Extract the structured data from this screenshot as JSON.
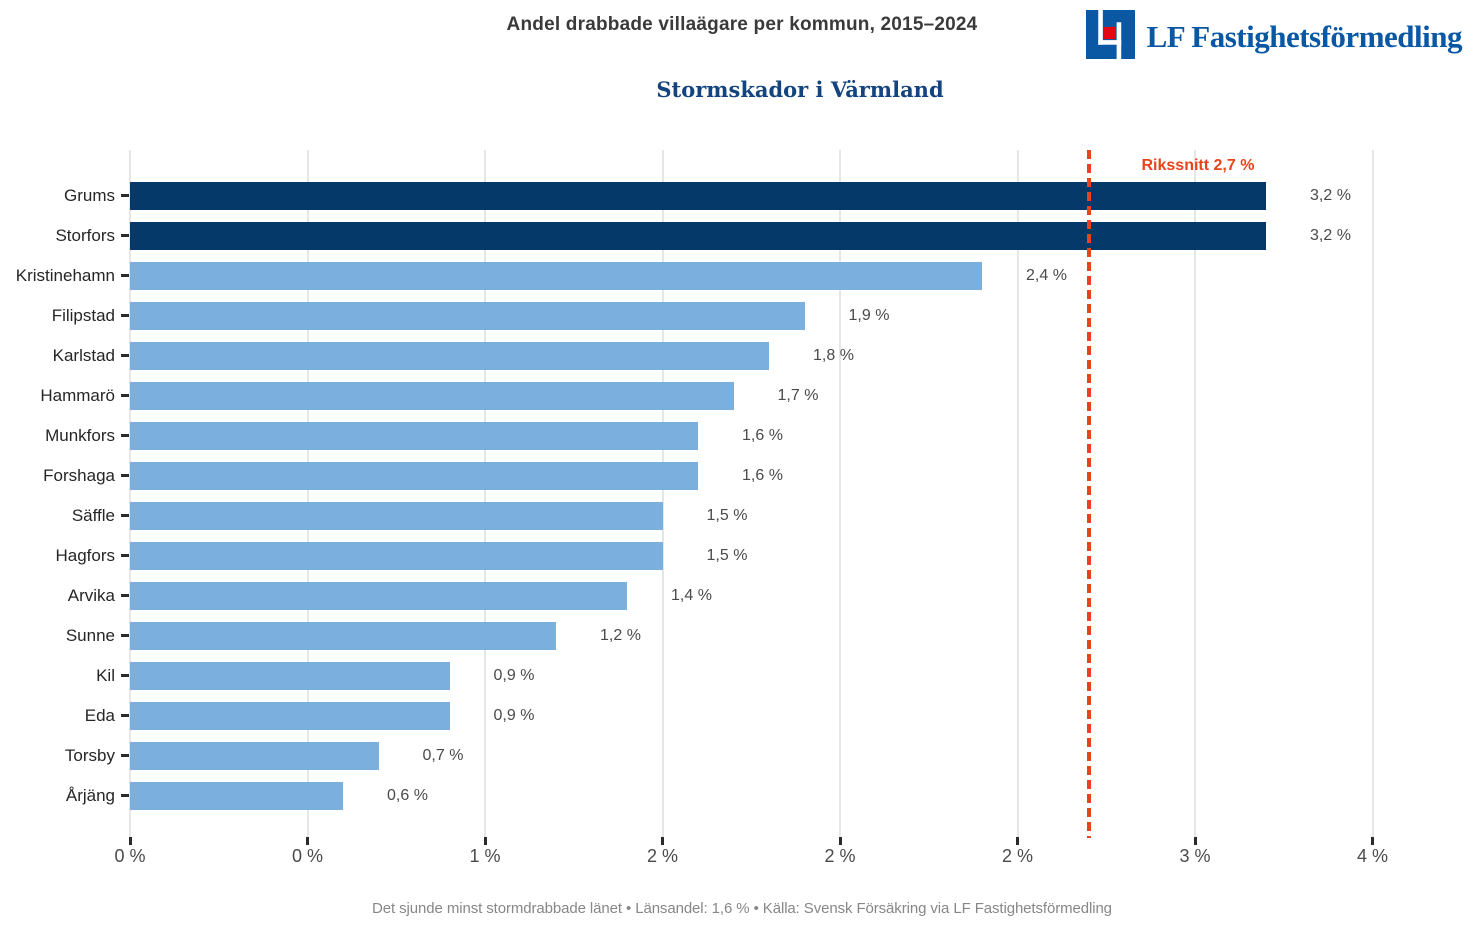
{
  "header": {
    "title": "Andel drabbade villaägare per kommun, 2015–2024",
    "subtitle": "Stormskador i Värmland"
  },
  "logo": {
    "text": "LF Fastighetsförmedling",
    "mark_blue": "#0a57a4",
    "mark_red": "#e30613"
  },
  "chart_data": {
    "type": "bar",
    "orientation": "horizontal",
    "categories": [
      "Grums",
      "Storfors",
      "Kristinehamn",
      "Filipstad",
      "Karlstad",
      "Hammarö",
      "Munkfors",
      "Forshaga",
      "Säffle",
      "Hagfors",
      "Arvika",
      "Sunne",
      "Kil",
      "Eda",
      "Torsby",
      "Årjäng"
    ],
    "values": [
      3.2,
      3.2,
      2.4,
      1.9,
      1.8,
      1.7,
      1.6,
      1.6,
      1.5,
      1.5,
      1.4,
      1.2,
      0.9,
      0.9,
      0.7,
      0.6
    ],
    "value_labels": [
      "3,2 %",
      "3,2 %",
      "2,4 %",
      "1,9 %",
      "1,8 %",
      "1,7 %",
      "1,6 %",
      "1,6 %",
      "1,5 %",
      "1,5 %",
      "1,4 %",
      "1,2 %",
      "0,9 %",
      "0,9 %",
      "0,7 %",
      "0,6 %"
    ],
    "xlim": [
      0,
      3.78
    ],
    "xticks": [
      0,
      0.5,
      1,
      1.5,
      2,
      2.5,
      3,
      3.5
    ],
    "xtick_labels": [
      "0 %",
      "0 %",
      "1 %",
      "2 %",
      "2 %",
      "2 %",
      "3 %",
      "4 %"
    ],
    "grid": true,
    "bar_colors": {
      "highlight": "#04396a",
      "default": "#7bb0de"
    },
    "highlight_count": 2,
    "reference_line": {
      "value": 2.7,
      "label": "Rikssnitt 2,7 %",
      "color": "#e8431c"
    }
  },
  "footer": {
    "text": "Det sjunde minst stormdrabbade länet  •  Länsandel: 1,6 %  •  Källa: Svensk Försäkring via LF Fastighetsförmedling"
  }
}
